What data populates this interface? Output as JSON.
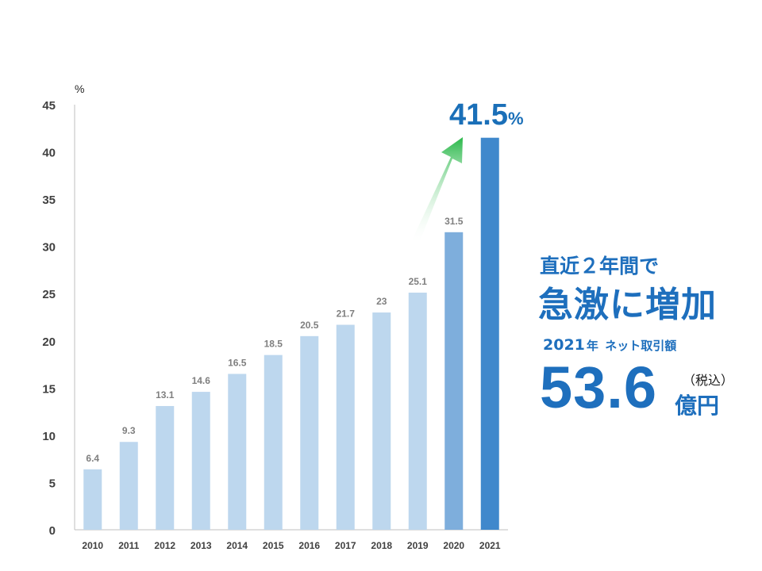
{
  "chart_data": {
    "type": "bar",
    "unit_label": "%",
    "categories": [
      "2010",
      "2011",
      "2012",
      "2013",
      "2014",
      "2015",
      "2016",
      "2017",
      "2018",
      "2019",
      "2020",
      "2021"
    ],
    "values": [
      6.4,
      9.3,
      13.1,
      14.6,
      16.5,
      18.5,
      20.5,
      21.7,
      23,
      25.1,
      31.5,
      41.5
    ],
    "data_labels": [
      "6.4",
      "9.3",
      "13.1",
      "14.6",
      "16.5",
      "18.5",
      "20.5",
      "21.7",
      "23",
      "25.1",
      "31.5",
      ""
    ],
    "yticks": [
      "0",
      "5",
      "10",
      "15",
      "20",
      "25",
      "30",
      "35",
      "40",
      "45"
    ],
    "ylim": [
      0,
      45
    ],
    "grid": false,
    "colors": {
      "base": "#bdd7ee",
      "mid": "#7eaedc",
      "highlight": "#3f88cc",
      "arrow_end": "#2ab84a"
    },
    "highlight": {
      "value": "41.5",
      "suffix": "%"
    }
  },
  "side_text": {
    "sub_heading": "直近２年間で",
    "main_heading": "急激に増加",
    "sales_year": "2021",
    "sales_year_suffix": "年",
    "sales_caption": "ネット取引額",
    "sales_value": "53.6",
    "tax_note": "（税込）",
    "sales_unit": "億円"
  }
}
